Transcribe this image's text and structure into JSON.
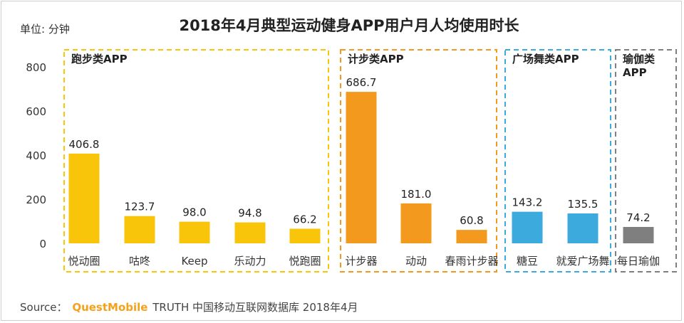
{
  "header": {
    "unit": "单位: 分钟",
    "title": "2018年4月典型运动健身APP用户月人均使用时长"
  },
  "footer": {
    "source_label": "Source：",
    "source_brand": "QuestMobile",
    "source_text": "TRUTH 中国移动互联网数据库 2018年4月"
  },
  "colors": {
    "yellow": "#f9c50a",
    "orange": "#f39a1e",
    "blue": "#3caadc",
    "gray": "#7f7f7f"
  },
  "chart_data": {
    "type": "bar",
    "title": "2018年4月典型运动健身APP用户月人均使用时长",
    "ylabel": "单位: 分钟",
    "ylim": [
      0,
      800
    ],
    "yticks": [
      0,
      200,
      400,
      600,
      800
    ],
    "grid": false,
    "groups": [
      {
        "name": "跑步类APP",
        "color": "yellow",
        "border": "#f9c50a",
        "categories": [
          "悦动圈",
          "咕咚",
          "Keep",
          "乐动力",
          "悦跑圈"
        ],
        "values": [
          406.8,
          123.7,
          98.0,
          94.8,
          66.2
        ],
        "labels": [
          "406.8",
          "123.7",
          "98.0",
          "94.8",
          "66.2"
        ]
      },
      {
        "name": "计步类APP",
        "color": "orange",
        "border": "#f39a1e",
        "categories": [
          "计步器",
          "动动",
          "春雨计步器"
        ],
        "values": [
          686.7,
          181.0,
          60.8
        ],
        "labels": [
          "686.7",
          "181.0",
          "60.8"
        ]
      },
      {
        "name": "广场舞类APP",
        "color": "blue",
        "border": "#3caadc",
        "categories": [
          "糖豆",
          "就爱广场舞"
        ],
        "values": [
          143.2,
          135.5
        ],
        "labels": [
          "143.2",
          "135.5"
        ]
      },
      {
        "name": "瑜伽类APP",
        "color": "gray",
        "border": "#7f7f7f",
        "categories": [
          "每日瑜伽"
        ],
        "values": [
          74.2
        ],
        "labels": [
          "74.2"
        ]
      }
    ]
  }
}
